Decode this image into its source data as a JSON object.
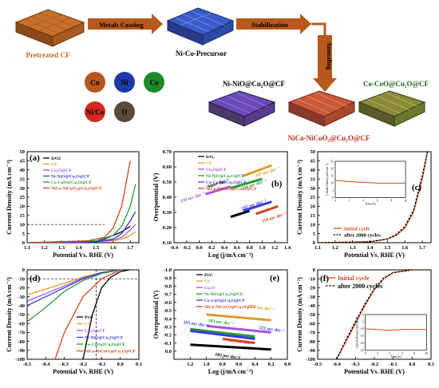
{
  "scheme": {
    "steps": [
      {
        "label": "Pretreated CF"
      },
      {
        "label": "Ni-Co-Precursor"
      }
    ],
    "arrows": [
      "Metals Coating",
      "Stabilization",
      "Annealing"
    ],
    "elements": [
      {
        "label": "Cu",
        "color": "#b5561c"
      },
      {
        "label": "Ni",
        "color": "#1c3aa8"
      },
      {
        "label": "Co",
        "color": "#1c8a2c"
      },
      {
        "label": "Ni/Co",
        "color": "#d42a20"
      },
      {
        "label": "O",
        "color": "#5a4a3a"
      }
    ],
    "products": [
      {
        "label": "Ni-NiO@Cu₂O@CF",
        "color": "#000000"
      },
      {
        "label": "Co-CoO@Cu₂O@CF",
        "color": "#1c6a1c"
      },
      {
        "label": "NiCo-NiCoO₂@Cu₂O@CF",
        "color": "#b8301c"
      }
    ]
  },
  "chart_data": [
    {
      "panel": "(a)",
      "type": "line",
      "xlabel": "Potential Vs. RHE (V)",
      "ylabel": "Current Density (mA cm⁻²)",
      "xlim": [
        1.1,
        1.75
      ],
      "ylim": [
        0,
        50
      ],
      "xticks": [
        "1.1",
        "1.2",
        "1.3",
        "1.4",
        "1.5",
        "1.6",
        "1.7"
      ],
      "yticks": [
        "0",
        "5",
        "10",
        "15",
        "20",
        "25",
        "30",
        "35",
        "40",
        "45",
        "50"
      ],
      "series": [
        {
          "name": "IrO2",
          "color": "#000000",
          "x": [
            1.1,
            1.4,
            1.5,
            1.55,
            1.6,
            1.65,
            1.7
          ],
          "y": [
            0,
            0.3,
            1,
            2,
            4,
            6,
            9
          ]
        },
        {
          "name": "CF",
          "color": "#e09a2a",
          "x": [
            1.1,
            1.5,
            1.6,
            1.65,
            1.7,
            1.73
          ],
          "y": [
            0,
            0.5,
            1,
            2,
            4,
            6
          ]
        },
        {
          "name": "Cu₂O@CF",
          "color": "#a855d6",
          "x": [
            1.1,
            1.5,
            1.6,
            1.65,
            1.7,
            1.73
          ],
          "y": [
            0,
            0.5,
            1.5,
            3,
            7,
            10
          ]
        },
        {
          "name": "Ni-NiO@Cu₂O@CF",
          "color": "#3a3adc",
          "x": [
            1.1,
            1.5,
            1.6,
            1.65,
            1.7,
            1.73
          ],
          "y": [
            0,
            0.5,
            2,
            5,
            12,
            17
          ]
        },
        {
          "name": "Co-CoO@Cu₂O@CF",
          "color": "#2a9a3a",
          "x": [
            1.1,
            1.5,
            1.6,
            1.65,
            1.7,
            1.73
          ],
          "y": [
            0,
            1,
            4,
            9,
            20,
            32
          ]
        },
        {
          "name": "NiCo-NiCoO₂@Cu₂O@CF",
          "color": "#d2461e",
          "x": [
            1.1,
            1.45,
            1.55,
            1.6,
            1.65,
            1.7
          ],
          "y": [
            0,
            1,
            3,
            8,
            20,
            45
          ]
        }
      ],
      "legend_placement": "top-left"
    },
    {
      "panel": "(b)",
      "type": "line",
      "xlabel": "Log (j/mA cm⁻²)",
      "ylabel": "Overpotential (V)",
      "xlim": [
        -0.4,
        1.4
      ],
      "ylim": [
        0.1,
        0.7
      ],
      "xticks": [
        "-0.4",
        "-0.2",
        "0.0",
        "0.2",
        "0.4",
        "0.6",
        "0.8",
        "1.0",
        "1.2",
        "1.4"
      ],
      "yticks": [
        "0.10",
        "0.20",
        "0.30",
        "0.40",
        "0.50",
        "0.60",
        "0.70"
      ],
      "series": [
        {
          "name": "IrO₂",
          "color": "#000000",
          "x": [
            0.5,
            0.8
          ],
          "y": [
            0.27,
            0.31
          ]
        },
        {
          "name": "CF",
          "color": "#e09a2a",
          "x": [
            0.7,
            1.15
          ],
          "y": [
            0.54,
            0.61
          ]
        },
        {
          "name": "Cu₂O@CF",
          "color": "#a855d6",
          "x": [
            0.1,
            0.5
          ],
          "y": [
            0.42,
            0.47
          ]
        },
        {
          "name": "Ni-NiO@Cu₂O@CF",
          "color": "#2a9a3a",
          "x": [
            0.5,
            1.0
          ],
          "y": [
            0.46,
            0.52
          ]
        },
        {
          "name": "Co-CoO@Cu₂O@CF",
          "color": "#3a3adc",
          "x": [
            0.7,
            1.15
          ],
          "y": [
            0.31,
            0.37
          ]
        },
        {
          "name": "NiCo-NiCoO₂@Cu₂O@CF",
          "color": "#d2461e",
          "x": [
            0.9,
            1.25
          ],
          "y": [
            0.29,
            0.34
          ]
        }
      ],
      "annotations": [
        "94mv dec⁻¹",
        "150 mv dec⁻¹",
        "234 mv dec⁻¹",
        "185 mv dec⁻¹",
        "118 mv dec⁻¹",
        "207 mv dec⁻¹"
      ],
      "legend_placement": "top-left"
    },
    {
      "panel": "(c)",
      "type": "line",
      "xlabel": "Potential Vs. RHE (V)",
      "ylabel": "Current Density (mA cm⁻²)",
      "xlim": [
        1.1,
        1.75
      ],
      "ylim": [
        0,
        50
      ],
      "xticks": [
        "1.1",
        "1.2",
        "1.3",
        "1.4",
        "1.5",
        "1.6",
        "1.7"
      ],
      "yticks": [
        "0",
        "5",
        "10",
        "15",
        "20",
        "25",
        "30",
        "35",
        "40",
        "45",
        "50"
      ],
      "series": [
        {
          "name": "Initial cycle",
          "color": "#d2461e",
          "x": [
            1.1,
            1.4,
            1.5,
            1.55,
            1.6,
            1.65,
            1.7,
            1.73
          ],
          "y": [
            0,
            0.5,
            2,
            4,
            8,
            17,
            35,
            50
          ]
        },
        {
          "name": "after 2000 cycles",
          "color": "#000000",
          "x": [
            1.1,
            1.4,
            1.5,
            1.55,
            1.6,
            1.65,
            1.7,
            1.73
          ],
          "y": [
            0,
            0.5,
            2,
            4.5,
            9,
            18,
            37,
            50
          ]
        }
      ],
      "inset": {
        "xlabel": "Time (h)",
        "ylabel": "Current Density (mA cm⁻²)",
        "xticks": [
          "0",
          "2",
          "4",
          "6",
          "8",
          "10"
        ],
        "yticks": [
          "0",
          "5",
          "10",
          "15",
          "20",
          "25"
        ],
        "x": [
          0,
          2,
          4,
          6,
          8,
          10
        ],
        "y": [
          12,
          11,
          10.5,
          10,
          10,
          10
        ]
      },
      "legend_placement": "bottom-center"
    },
    {
      "panel": "(d)",
      "type": "line",
      "xlabel": "Potential Vs. RHE (V)",
      "ylabel": "Current Density (mA cm⁻²)",
      "xlim": [
        -0.5,
        0.1
      ],
      "ylim": [
        -100,
        0
      ],
      "xticks": [
        "-0.5",
        "-0.4",
        "-0.3",
        "-0.2",
        "-0.1",
        "0.0",
        "0.1"
      ],
      "yticks": [
        "0",
        "-10",
        "-20",
        "-30",
        "-40",
        "-50",
        "-60",
        "-70",
        "-80",
        "-90",
        "-100"
      ],
      "series": [
        {
          "name": "Pt/C",
          "color": "#000000",
          "x": [
            -0.2,
            -0.15,
            -0.1,
            -0.05,
            0.0,
            0.05
          ],
          "y": [
            -100,
            -50,
            -20,
            -8,
            -2,
            0
          ]
        },
        {
          "name": "CF",
          "color": "#e09a2a",
          "x": [
            -0.5,
            -0.3,
            -0.2,
            -0.1,
            0.0
          ],
          "y": [
            -28,
            -15,
            -8,
            -3,
            0
          ]
        },
        {
          "name": "Cu₂O@CF",
          "color": "#a855d6",
          "x": [
            -0.5,
            -0.3,
            -0.2,
            -0.1,
            0.0
          ],
          "y": [
            -35,
            -18,
            -9,
            -3,
            0
          ]
        },
        {
          "name": "Ni-NiO@Cu₂O@CF",
          "color": "#3a3adc",
          "x": [
            -0.5,
            -0.3,
            -0.2,
            -0.1,
            0.0
          ],
          "y": [
            -40,
            -20,
            -10,
            -3,
            0
          ]
        },
        {
          "name": "Co-CoO@Cu₂O@CF",
          "color": "#2a9a3a",
          "x": [
            -0.5,
            -0.4,
            -0.3,
            -0.2,
            -0.1,
            0.0
          ],
          "y": [
            -58,
            -42,
            -24,
            -12,
            -4,
            0
          ]
        },
        {
          "name": "NiCo-NiCoO₂@Cu₂O@CF",
          "color": "#d2461e",
          "x": [
            -0.35,
            -0.3,
            -0.2,
            -0.1,
            0.0
          ],
          "y": [
            -100,
            -70,
            -30,
            -10,
            0
          ]
        }
      ],
      "reference": {
        "y": -10,
        "x": -0.13
      },
      "legend_placement": "bottom-right"
    },
    {
      "panel": "(e)",
      "type": "line",
      "xlabel": "Log (j/mA cm⁻²)",
      "ylabel": "Overpotential (V)",
      "xlim": [
        1.4,
        0.0
      ],
      "ylim": [
        0.1,
        -1.0
      ],
      "xticks": [
        "1.2",
        "1.0",
        "0.8",
        "0.6",
        "0.4",
        "0.2",
        "0.0"
      ],
      "yticks": [
        "-1.0",
        "-0.9",
        "-0.8",
        "-0.7",
        "-0.6",
        "-0.5",
        "-0.4",
        "-0.3",
        "-0.2",
        "-0.1",
        "0.0"
      ],
      "series": [
        {
          "name": "Pt/C",
          "color": "#000000",
          "x": [
            1.2,
            0.2
          ],
          "y": [
            -0.08,
            -0.02
          ]
        },
        {
          "name": "CF",
          "color": "#e09a2a",
          "x": [
            1.0,
            0.2
          ],
          "y": [
            -0.45,
            -0.38
          ]
        },
        {
          "name": "Cu₂O",
          "color": "#a855d6",
          "x": [
            1.0,
            0.2
          ],
          "y": [
            -0.31,
            -0.23
          ]
        },
        {
          "name": "Ni-NiO@Cu₂O@CF",
          "color": "#2a9a3a",
          "x": [
            1.2,
            0.4
          ],
          "y": [
            -0.27,
            -0.18
          ]
        },
        {
          "name": "Co-CoO@Cu₂O@CF",
          "color": "#3a3adc",
          "x": [
            1.2,
            0.4
          ],
          "y": [
            -0.25,
            -0.15
          ]
        },
        {
          "name": "NiCo-NiCoO2@Cu₂O@CF",
          "color": "#d2461e",
          "x": [
            0.8,
            0.4
          ],
          "y": [
            -0.15,
            -0.1
          ]
        }
      ],
      "annotations": [
        "225 mv dec⁻¹",
        "195 mv dec⁻¹",
        "203 mv dec⁻¹",
        "222 mv dec⁻¹",
        "119 mv dec⁻¹",
        "105 mv dec⁻¹"
      ],
      "legend_placement": "top-left"
    },
    {
      "panel": "(f)",
      "type": "line",
      "xlabel": "Potential Vs. RHE (V)",
      "ylabel": "Current Density (mA cm⁻²)",
      "xlim": [
        -0.5,
        0.1
      ],
      "ylim": [
        -100,
        0
      ],
      "xticks": [
        "-0.5",
        "-0.4",
        "-0.3",
        "-0.2",
        "-0.1",
        "0.0",
        "0.1"
      ],
      "yticks": [
        "0",
        "-10",
        "-20",
        "-30",
        "-40",
        "-50",
        "-60",
        "-70",
        "-80",
        "-90",
        "-100"
      ],
      "series": [
        {
          "name": "Initial cycle",
          "color": "#d2461e",
          "x": [
            -0.4,
            -0.35,
            -0.3,
            -0.25,
            -0.2,
            -0.15,
            -0.1,
            0.0,
            0.1
          ],
          "y": [
            -100,
            -80,
            -60,
            -40,
            -22,
            -10,
            -3,
            0,
            0
          ]
        },
        {
          "name": "after 2000 cycles",
          "color": "#000000",
          "x": [
            -0.4,
            -0.35,
            -0.3,
            -0.25,
            -0.2,
            -0.15,
            -0.1,
            0.0,
            0.1
          ],
          "y": [
            -100,
            -78,
            -58,
            -38,
            -21,
            -9,
            -3,
            0,
            0
          ]
        }
      ],
      "inset": {
        "xlabel": "Time (h)",
        "ylabel": "Current Density (mA cm⁻²)",
        "xticks": [
          "0",
          "2",
          "4",
          "6",
          "8",
          "10"
        ],
        "yticks": [
          "-25",
          "-20",
          "-15",
          "-10",
          "-5",
          "0"
        ],
        "x": [
          0,
          2,
          4,
          6,
          8,
          10
        ],
        "y": [
          -10,
          -10.5,
          -11,
          -10.5,
          -10.5,
          -10.5
        ]
      },
      "legend_placement": "top-left"
    }
  ]
}
